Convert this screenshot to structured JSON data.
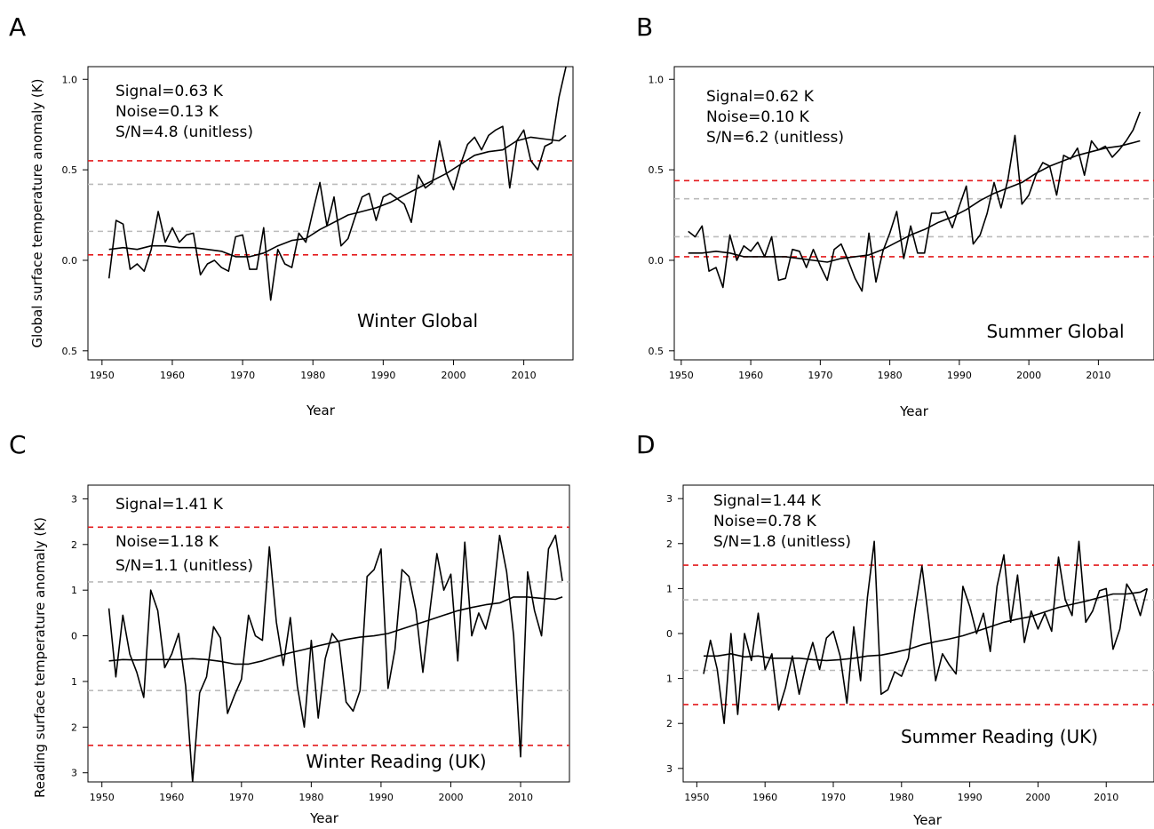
{
  "chart_data": [
    {
      "panel": "A",
      "type": "line",
      "xlabel": "Year",
      "ylabel": "Global surface temperature anomaly (K)",
      "panel_title": "Winter Global",
      "annotations": [
        "Signal=0.63 K",
        "Noise=0.13 K",
        "S/N=4.8 (unitless)"
      ],
      "xlim": [
        1948,
        2017
      ],
      "ylim": [
        -0.55,
        1.07
      ],
      "xticks": [
        1950,
        1960,
        1970,
        1980,
        1990,
        2000,
        2010
      ],
      "xtick_labels": [
        "1950",
        "1960",
        "1970",
        "1980",
        "1990",
        "2000",
        "2010"
      ],
      "yticks": [
        -0.5,
        0.0,
        0.5,
        1.0
      ],
      "ytick_labels": [
        "0.5",
        "0.0",
        "0.5",
        "1.0"
      ],
      "hlines": [
        {
          "y": 0.55,
          "color": "#e41a1c"
        },
        {
          "y": 0.42,
          "color": "#bbbbbb"
        },
        {
          "y": 0.16,
          "color": "#bbbbbb"
        },
        {
          "y": 0.03,
          "color": "#e41a1c"
        }
      ],
      "series": [
        {
          "x": [
            1951,
            1952,
            1953,
            1954,
            1955,
            1956,
            1957,
            1958,
            1959,
            1960,
            1961,
            1962,
            1963,
            1964,
            1965,
            1966,
            1967,
            1968,
            1969,
            1970,
            1971,
            1972,
            1973,
            1974,
            1975,
            1976,
            1977,
            1978,
            1979,
            1980,
            1981,
            1982,
            1983,
            1984,
            1985,
            1986,
            1987,
            1988,
            1989,
            1990,
            1991,
            1992,
            1993,
            1994,
            1995,
            1996,
            1997,
            1998,
            1999,
            2000,
            2001,
            2002,
            2003,
            2004,
            2005,
            2006,
            2007,
            2008,
            2009,
            2010,
            2011,
            2012,
            2013,
            2014,
            2015,
            2016
          ],
          "values": [
            -0.1,
            0.22,
            0.2,
            -0.05,
            -0.02,
            -0.06,
            0.06,
            0.27,
            0.1,
            0.18,
            0.1,
            0.14,
            0.15,
            -0.08,
            -0.02,
            0.0,
            -0.04,
            -0.06,
            0.13,
            0.14,
            -0.05,
            -0.05,
            0.18,
            -0.22,
            0.06,
            -0.02,
            -0.04,
            0.15,
            0.1,
            0.27,
            0.43,
            0.19,
            0.35,
            0.08,
            0.12,
            0.24,
            0.35,
            0.37,
            0.22,
            0.35,
            0.37,
            0.34,
            0.31,
            0.21,
            0.47,
            0.4,
            0.43,
            0.66,
            0.48,
            0.39,
            0.53,
            0.64,
            0.68,
            0.61,
            0.69,
            0.72,
            0.74,
            0.4,
            0.66,
            0.72,
            0.55,
            0.5,
            0.63,
            0.65,
            0.9,
            1.07
          ]
        },
        {
          "x": [
            1951,
            1953,
            1955,
            1957,
            1959,
            1961,
            1963,
            1965,
            1967,
            1969,
            1971,
            1973,
            1975,
            1977,
            1979,
            1981,
            1983,
            1985,
            1987,
            1989,
            1991,
            1993,
            1995,
            1997,
            1999,
            2001,
            2003,
            2005,
            2007,
            2009,
            2011,
            2013,
            2015,
            2016
          ],
          "values": [
            0.06,
            0.07,
            0.06,
            0.08,
            0.08,
            0.07,
            0.07,
            0.06,
            0.05,
            0.02,
            0.02,
            0.04,
            0.08,
            0.11,
            0.12,
            0.17,
            0.21,
            0.25,
            0.27,
            0.29,
            0.32,
            0.36,
            0.4,
            0.44,
            0.48,
            0.53,
            0.58,
            0.6,
            0.61,
            0.66,
            0.68,
            0.67,
            0.66,
            0.69
          ]
        }
      ]
    },
    {
      "panel": "B",
      "type": "line",
      "xlabel": "Year",
      "ylabel": "",
      "panel_title": "Summer Global",
      "annotations": [
        "Signal=0.62 K",
        "Noise=0.10 K",
        "S/N=6.2 (unitless)"
      ],
      "xlim": [
        1949,
        2018
      ],
      "ylim": [
        -0.55,
        1.07
      ],
      "xticks": [
        1950,
        1960,
        1970,
        1980,
        1990,
        2000,
        2010
      ],
      "xtick_labels": [
        "1950",
        "1960",
        "1970",
        "1980",
        "1990",
        "2000",
        "2010"
      ],
      "yticks": [
        -0.5,
        0.0,
        0.5,
        1.0
      ],
      "ytick_labels": [
        "0.5",
        "0.0",
        "0.5",
        "1.0"
      ],
      "hlines": [
        {
          "y": 0.44,
          "color": "#e41a1c"
        },
        {
          "y": 0.34,
          "color": "#bbbbbb"
        },
        {
          "y": 0.13,
          "color": "#bbbbbb"
        },
        {
          "y": 0.02,
          "color": "#e41a1c"
        }
      ],
      "series": [
        {
          "x": [
            1951,
            1952,
            1953,
            1954,
            1955,
            1956,
            1957,
            1958,
            1959,
            1960,
            1961,
            1962,
            1963,
            1964,
            1965,
            1966,
            1967,
            1968,
            1969,
            1970,
            1971,
            1972,
            1973,
            1974,
            1975,
            1976,
            1977,
            1978,
            1979,
            1980,
            1981,
            1982,
            1983,
            1984,
            1985,
            1986,
            1987,
            1988,
            1989,
            1990,
            1991,
            1992,
            1993,
            1994,
            1995,
            1996,
            1997,
            1998,
            1999,
            2000,
            2001,
            2002,
            2003,
            2004,
            2005,
            2006,
            2007,
            2008,
            2009,
            2010,
            2011,
            2012,
            2013,
            2014,
            2015,
            2016
          ],
          "values": [
            0.16,
            0.13,
            0.19,
            -0.06,
            -0.04,
            -0.15,
            0.14,
            0.0,
            0.08,
            0.05,
            0.1,
            0.02,
            0.13,
            -0.11,
            -0.1,
            0.06,
            0.05,
            -0.04,
            0.06,
            -0.03,
            -0.11,
            0.06,
            0.09,
            0.0,
            -0.1,
            -0.17,
            0.15,
            -0.12,
            0.05,
            0.15,
            0.27,
            0.01,
            0.19,
            0.04,
            0.04,
            0.26,
            0.26,
            0.27,
            0.18,
            0.3,
            0.41,
            0.09,
            0.14,
            0.26,
            0.43,
            0.29,
            0.45,
            0.69,
            0.31,
            0.36,
            0.47,
            0.54,
            0.52,
            0.36,
            0.58,
            0.56,
            0.62,
            0.47,
            0.66,
            0.61,
            0.63,
            0.57,
            0.61,
            0.66,
            0.72,
            0.82
          ]
        },
        {
          "x": [
            1951,
            1953,
            1955,
            1957,
            1959,
            1961,
            1963,
            1965,
            1967,
            1969,
            1971,
            1973,
            1975,
            1977,
            1979,
            1981,
            1983,
            1985,
            1987,
            1989,
            1991,
            1993,
            1995,
            1997,
            1999,
            2001,
            2003,
            2005,
            2007,
            2009,
            2011,
            2013,
            2015,
            2016
          ],
          "values": [
            0.04,
            0.04,
            0.05,
            0.04,
            0.02,
            0.02,
            0.02,
            0.02,
            0.01,
            0.0,
            -0.01,
            0.01,
            0.02,
            0.03,
            0.06,
            0.1,
            0.14,
            0.17,
            0.21,
            0.24,
            0.28,
            0.33,
            0.37,
            0.4,
            0.43,
            0.48,
            0.52,
            0.55,
            0.58,
            0.6,
            0.62,
            0.63,
            0.65,
            0.66
          ]
        }
      ]
    },
    {
      "panel": "C",
      "type": "line",
      "xlabel": "Year",
      "ylabel": "Reading surface temperature anomaly (K)",
      "panel_title": "Winter Reading (UK)",
      "annotations": [
        "Signal=1.41 K",
        "Noise=1.18 K",
        "S/N=1.1 (unitless)"
      ],
      "xlim": [
        1948,
        2017
      ],
      "ylim": [
        -3.2,
        3.3
      ],
      "xticks": [
        1950,
        1960,
        1970,
        1980,
        1990,
        2000,
        2010
      ],
      "xtick_labels": [
        "1950",
        "1960",
        "1970",
        "1980",
        "1990",
        "2000",
        "2010"
      ],
      "yticks": [
        -3,
        -2,
        -1,
        0,
        1,
        2,
        3
      ],
      "ytick_labels": [
        "3",
        "2",
        "1",
        "0",
        "1",
        "2",
        "3"
      ],
      "hlines": [
        {
          "y": 2.38,
          "color": "#e41a1c"
        },
        {
          "y": 1.18,
          "color": "#bbbbbb"
        },
        {
          "y": -1.2,
          "color": "#bbbbbb"
        },
        {
          "y": -2.4,
          "color": "#e41a1c"
        }
      ],
      "series": [
        {
          "x": [
            1951,
            1952,
            1953,
            1954,
            1955,
            1956,
            1957,
            1958,
            1959,
            1960,
            1961,
            1962,
            1963,
            1964,
            1965,
            1966,
            1967,
            1968,
            1969,
            1970,
            1971,
            1972,
            1973,
            1974,
            1975,
            1976,
            1977,
            1978,
            1979,
            1980,
            1981,
            1982,
            1983,
            1984,
            1985,
            1986,
            1987,
            1988,
            1989,
            1990,
            1991,
            1992,
            1993,
            1994,
            1995,
            1996,
            1997,
            1998,
            1999,
            2000,
            2001,
            2002,
            2003,
            2004,
            2005,
            2006,
            2007,
            2008,
            2009,
            2010,
            2011,
            2012,
            2013,
            2014,
            2015,
            2016
          ],
          "values": [
            0.6,
            -0.9,
            0.45,
            -0.4,
            -0.8,
            -1.35,
            1.0,
            0.55,
            -0.7,
            -0.4,
            0.05,
            -1.1,
            -3.2,
            -1.25,
            -0.9,
            0.2,
            -0.05,
            -1.7,
            -1.3,
            -0.95,
            0.45,
            0.0,
            -0.1,
            1.95,
            0.3,
            -0.65,
            0.4,
            -1.1,
            -2.0,
            -0.1,
            -1.8,
            -0.5,
            0.05,
            -0.15,
            -1.45,
            -1.65,
            -1.2,
            1.3,
            1.45,
            1.9,
            -1.15,
            -0.3,
            1.45,
            1.3,
            0.55,
            -0.8,
            0.55,
            1.8,
            1.0,
            1.35,
            -0.55,
            2.05,
            0.0,
            0.5,
            0.15,
            0.75,
            2.2,
            1.4,
            0.0,
            -2.65,
            1.4,
            0.55,
            0.0,
            1.9,
            2.2,
            1.2
          ]
        },
        {
          "x": [
            1951,
            1953,
            1955,
            1957,
            1959,
            1961,
            1963,
            1965,
            1967,
            1969,
            1971,
            1973,
            1975,
            1977,
            1979,
            1981,
            1983,
            1985,
            1987,
            1989,
            1991,
            1993,
            1995,
            1997,
            1999,
            2001,
            2003,
            2005,
            2007,
            2009,
            2011,
            2013,
            2015,
            2016
          ],
          "values": [
            -0.55,
            -0.52,
            -0.53,
            -0.52,
            -0.52,
            -0.52,
            -0.5,
            -0.52,
            -0.56,
            -0.62,
            -0.62,
            -0.55,
            -0.45,
            -0.37,
            -0.3,
            -0.22,
            -0.15,
            -0.08,
            -0.03,
            0.0,
            0.05,
            0.15,
            0.25,
            0.35,
            0.45,
            0.55,
            0.62,
            0.68,
            0.72,
            0.85,
            0.85,
            0.82,
            0.8,
            0.85
          ]
        }
      ]
    },
    {
      "panel": "D",
      "type": "line",
      "xlabel": "Year",
      "ylabel": "",
      "panel_title": "Summer Reading (UK)",
      "annotations": [
        "Signal=1.44 K",
        "Noise=0.78 K",
        "S/N=1.8 (unitless)"
      ],
      "xlim": [
        1948,
        2017
      ],
      "ylim": [
        -3.3,
        3.3
      ],
      "xticks": [
        1950,
        1960,
        1970,
        1980,
        1990,
        2000,
        2010
      ],
      "xtick_labels": [
        "1950",
        "1960",
        "1970",
        "1980",
        "1990",
        "2000",
        "2010"
      ],
      "yticks": [
        -3,
        -2,
        -1,
        0,
        1,
        2,
        3
      ],
      "ytick_labels": [
        "3",
        "2",
        "1",
        "0",
        "1",
        "2",
        "3"
      ],
      "hlines": [
        {
          "y": 1.52,
          "color": "#e41a1c"
        },
        {
          "y": 0.75,
          "color": "#bbbbbb"
        },
        {
          "y": -0.82,
          "color": "#bbbbbb"
        },
        {
          "y": -1.58,
          "color": "#e41a1c"
        }
      ],
      "series": [
        {
          "x": [
            1951,
            1952,
            1953,
            1954,
            1955,
            1956,
            1957,
            1958,
            1959,
            1960,
            1961,
            1962,
            1963,
            1964,
            1965,
            1966,
            1967,
            1968,
            1969,
            1970,
            1971,
            1972,
            1973,
            1974,
            1975,
            1976,
            1977,
            1978,
            1979,
            1980,
            1981,
            1982,
            1983,
            1984,
            1985,
            1986,
            1987,
            1988,
            1989,
            1990,
            1991,
            1992,
            1993,
            1994,
            1995,
            1996,
            1997,
            1998,
            1999,
            2000,
            2001,
            2002,
            2003,
            2004,
            2005,
            2006,
            2007,
            2008,
            2009,
            2010,
            2011,
            2012,
            2013,
            2014,
            2015,
            2016
          ],
          "values": [
            -0.9,
            -0.15,
            -0.8,
            -2.0,
            0.0,
            -1.8,
            0.0,
            -0.6,
            0.45,
            -0.8,
            -0.45,
            -1.7,
            -1.2,
            -0.5,
            -1.35,
            -0.7,
            -0.2,
            -0.8,
            -0.1,
            0.05,
            -0.5,
            -1.55,
            0.15,
            -1.05,
            0.8,
            2.05,
            -1.35,
            -1.25,
            -0.85,
            -0.95,
            -0.55,
            0.55,
            1.5,
            0.3,
            -1.05,
            -0.45,
            -0.7,
            -0.9,
            1.05,
            0.6,
            0.0,
            0.45,
            -0.4,
            1.05,
            1.75,
            0.25,
            1.3,
            -0.2,
            0.5,
            0.1,
            0.45,
            0.05,
            1.7,
            0.75,
            0.4,
            2.05,
            0.25,
            0.5,
            0.95,
            1.0,
            -0.35,
            0.1,
            1.1,
            0.85,
            0.4,
            1.0
          ]
        },
        {
          "x": [
            1951,
            1953,
            1955,
            1957,
            1959,
            1961,
            1963,
            1965,
            1967,
            1969,
            1971,
            1973,
            1975,
            1977,
            1979,
            1981,
            1983,
            1985,
            1987,
            1989,
            1991,
            1993,
            1995,
            1997,
            1999,
            2001,
            2003,
            2005,
            2007,
            2009,
            2011,
            2013,
            2015,
            2016
          ],
          "values": [
            -0.5,
            -0.5,
            -0.45,
            -0.52,
            -0.5,
            -0.55,
            -0.55,
            -0.55,
            -0.58,
            -0.6,
            -0.58,
            -0.55,
            -0.5,
            -0.48,
            -0.42,
            -0.35,
            -0.25,
            -0.18,
            -0.12,
            -0.05,
            0.05,
            0.15,
            0.25,
            0.32,
            0.38,
            0.48,
            0.58,
            0.65,
            0.72,
            0.8,
            0.88,
            0.88,
            0.92,
            1.0
          ]
        }
      ]
    }
  ]
}
